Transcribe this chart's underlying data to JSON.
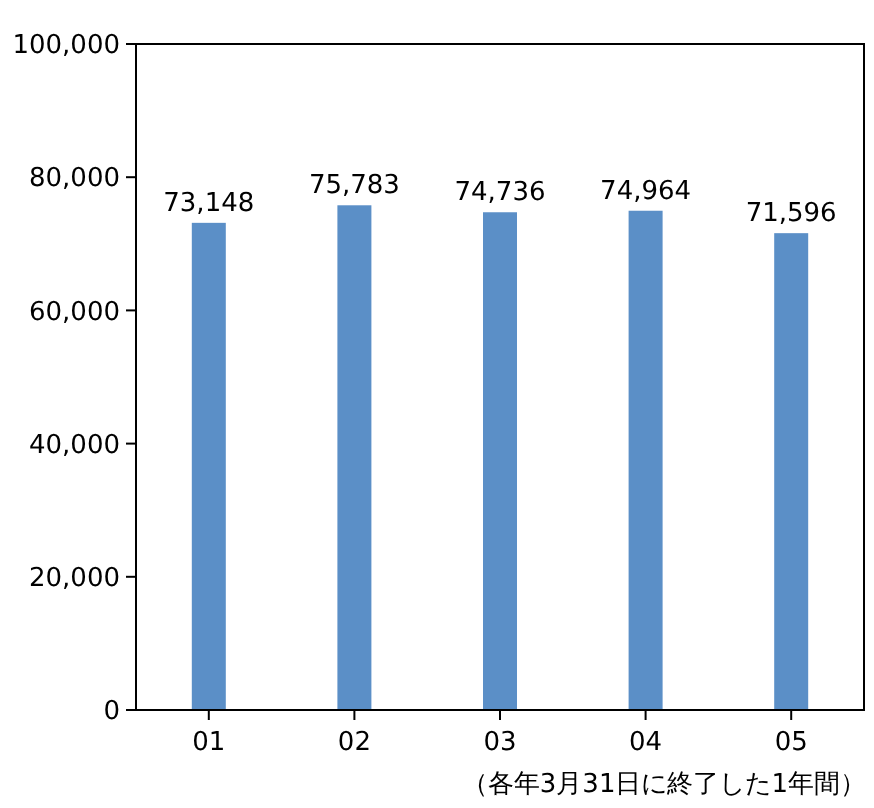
{
  "chart_data": {
    "type": "bar",
    "categories": [
      "01",
      "02",
      "03",
      "04",
      "05"
    ],
    "values": [
      73148,
      75783,
      74736,
      74964,
      71596
    ],
    "color": "#5b8fc7",
    "ylim": [
      0,
      100000
    ],
    "yticks": [
      {
        "value": 0,
        "label": "0"
      },
      {
        "value": 20000,
        "label": "20,000"
      },
      {
        "value": 40000,
        "label": "40,000"
      },
      {
        "value": 60000,
        "label": "60,000"
      },
      {
        "value": 80000,
        "label": "80,000"
      },
      {
        "value": 100000,
        "label": "100,000"
      }
    ],
    "value_labels": [
      "73,148",
      "75,783",
      "74,736",
      "74,964",
      "71,596"
    ],
    "grid": false,
    "annotations": [
      "（各年3月31日に終了した1年間）"
    ]
  }
}
